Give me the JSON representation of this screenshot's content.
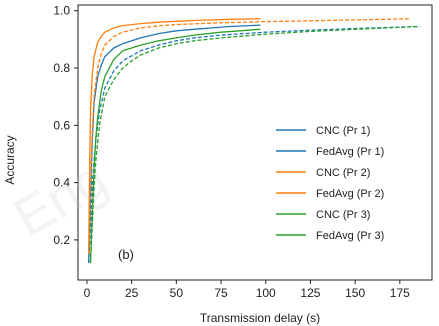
{
  "watermark": "Eng",
  "chart_data": {
    "type": "line",
    "panel_label": "(b)",
    "xlabel": "Transmission delay (s)",
    "ylabel": "Accuracy",
    "xlim": [
      -5,
      193
    ],
    "ylim": [
      0.06,
      1.02
    ],
    "xticks": [
      0,
      25,
      50,
      75,
      100,
      125,
      150,
      175
    ],
    "yticks": [
      0.2,
      0.4,
      0.6,
      0.8,
      1.0
    ],
    "ytick_labels": [
      "0.2",
      "0.4",
      "0.6",
      "0.8",
      "1.0"
    ],
    "grid": false,
    "legend_position": "lower-right",
    "series": [
      {
        "name": "CNC (Pr 1)",
        "color": "#1f77b4",
        "dash": false,
        "x": [
          1,
          2,
          3,
          4,
          6,
          8,
          10,
          15,
          20,
          30,
          40,
          50,
          60,
          70,
          80,
          97
        ],
        "y": [
          0.12,
          0.35,
          0.55,
          0.68,
          0.77,
          0.81,
          0.84,
          0.87,
          0.885,
          0.905,
          0.92,
          0.93,
          0.935,
          0.94,
          0.945,
          0.95
        ]
      },
      {
        "name": "FedAvg (Pr 1)",
        "color": "#1f77b4",
        "dash": true,
        "x": [
          1,
          2,
          3,
          5,
          7,
          10,
          15,
          20,
          30,
          40,
          50,
          60,
          75,
          100,
          125,
          150,
          175,
          186
        ],
        "y": [
          0.12,
          0.25,
          0.4,
          0.55,
          0.65,
          0.73,
          0.79,
          0.825,
          0.86,
          0.88,
          0.895,
          0.905,
          0.915,
          0.925,
          0.932,
          0.938,
          0.943,
          0.945
        ]
      },
      {
        "name": "CNC (Pr 2)",
        "color": "#ff7f0e",
        "dash": false,
        "x": [
          1,
          1.5,
          2,
          3,
          4,
          6,
          8,
          10,
          15,
          20,
          30,
          40,
          50,
          60,
          70,
          80,
          97
        ],
        "y": [
          0.15,
          0.45,
          0.65,
          0.78,
          0.84,
          0.89,
          0.91,
          0.925,
          0.94,
          0.948,
          0.955,
          0.96,
          0.963,
          0.966,
          0.968,
          0.97,
          0.972
        ]
      },
      {
        "name": "FedAvg (Pr 2)",
        "color": "#ff7f0e",
        "dash": true,
        "x": [
          1,
          2,
          3,
          4,
          6,
          8,
          10,
          15,
          20,
          30,
          40,
          50,
          75,
          100,
          125,
          150,
          175,
          180
        ],
        "y": [
          0.15,
          0.4,
          0.58,
          0.7,
          0.8,
          0.85,
          0.88,
          0.91,
          0.925,
          0.94,
          0.947,
          0.952,
          0.958,
          0.962,
          0.965,
          0.968,
          0.971,
          0.972
        ]
      },
      {
        "name": "CNC (Pr 3)",
        "color": "#2ca02c",
        "dash": false,
        "x": [
          2,
          3,
          4,
          5,
          6,
          8,
          10,
          15,
          20,
          30,
          40,
          50,
          60,
          75,
          97
        ],
        "y": [
          0.12,
          0.3,
          0.45,
          0.56,
          0.63,
          0.72,
          0.77,
          0.83,
          0.86,
          0.88,
          0.895,
          0.905,
          0.915,
          0.925,
          0.935
        ]
      },
      {
        "name": "FedAvg (Pr 3)",
        "color": "#2ca02c",
        "dash": true,
        "x": [
          2,
          3,
          4,
          5,
          7,
          10,
          15,
          20,
          25,
          30,
          40,
          50,
          60,
          75,
          100,
          125,
          150,
          175,
          186
        ],
        "y": [
          0.12,
          0.25,
          0.38,
          0.48,
          0.6,
          0.7,
          0.76,
          0.8,
          0.825,
          0.845,
          0.87,
          0.885,
          0.895,
          0.905,
          0.918,
          0.928,
          0.935,
          0.942,
          0.945
        ]
      }
    ]
  }
}
